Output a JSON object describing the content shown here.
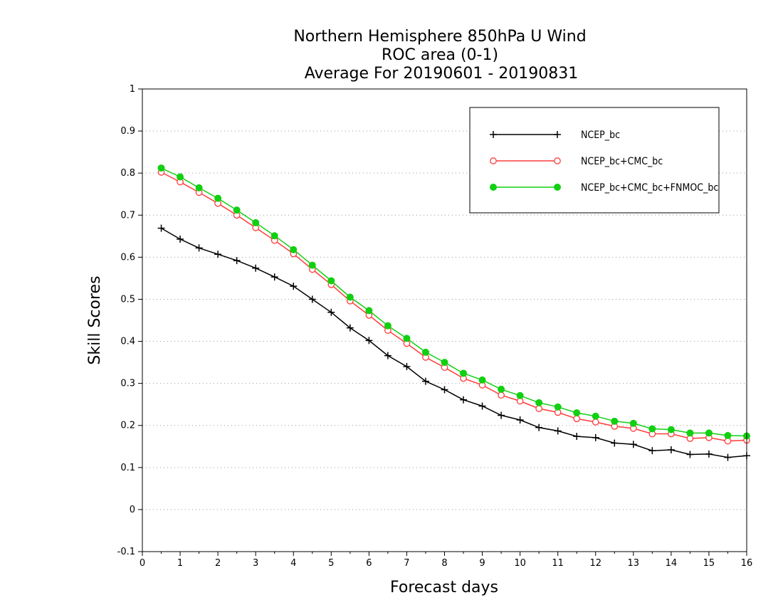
{
  "chart_data": {
    "type": "line",
    "title": [
      "Northern Hemisphere 850hPa U Wind",
      "ROC area (0-1)",
      "Average For 20190601 - 20190831"
    ],
    "xlabel": "Forecast days",
    "ylabel": "Skill Scores",
    "xlim": [
      0,
      16
    ],
    "ylim": [
      -0.1,
      1
    ],
    "xticks": [
      0,
      1,
      2,
      3,
      4,
      5,
      6,
      7,
      8,
      9,
      10,
      11,
      12,
      13,
      14,
      15,
      16
    ],
    "yticks": [
      -0.1,
      0,
      0.1,
      0.2,
      0.3,
      0.4,
      0.5,
      0.6,
      0.7,
      0.8,
      0.9,
      1
    ],
    "ytick_labels": [
      "-0.1",
      "0",
      "0.1",
      "0.2",
      "0.3",
      "0.4",
      "0.5",
      "0.6",
      "0.7",
      "0.8",
      "0.9",
      "1"
    ],
    "grid": "horizontal dotted",
    "legend_position": "top-right",
    "x": [
      0.5,
      1,
      1.5,
      2,
      2.5,
      3,
      3.5,
      4,
      4.5,
      5,
      5.5,
      6,
      6.5,
      7,
      7.5,
      8,
      8.5,
      9,
      9.5,
      10,
      10.5,
      11,
      11.5,
      12,
      12.5,
      13,
      13.5,
      14,
      14.5,
      15,
      15.5,
      16
    ],
    "series": [
      {
        "name": "NCEP_bc",
        "color": "#000000",
        "marker": "plus",
        "values": [
          0.669,
          0.643,
          0.622,
          0.607,
          0.592,
          0.574,
          0.553,
          0.531,
          0.5,
          0.469,
          0.432,
          0.402,
          0.366,
          0.34,
          0.305,
          0.285,
          0.261,
          0.246,
          0.224,
          0.213,
          0.195,
          0.187,
          0.174,
          0.171,
          0.158,
          0.155,
          0.14,
          0.142,
          0.131,
          0.132,
          0.124,
          0.128
        ]
      },
      {
        "name": "NCEP_bc+CMC_bc",
        "color": "#ff3b3b",
        "marker": "open-circle",
        "values": [
          0.802,
          0.779,
          0.754,
          0.728,
          0.7,
          0.67,
          0.64,
          0.608,
          0.571,
          0.535,
          0.496,
          0.462,
          0.426,
          0.395,
          0.362,
          0.338,
          0.312,
          0.296,
          0.272,
          0.258,
          0.24,
          0.231,
          0.216,
          0.208,
          0.198,
          0.193,
          0.18,
          0.18,
          0.169,
          0.171,
          0.163,
          0.165
        ]
      },
      {
        "name": "NCEP_bc+CMC_bc+FNMOC_bc",
        "color": "#11d011",
        "marker": "filled-circle",
        "values": [
          0.812,
          0.791,
          0.765,
          0.74,
          0.712,
          0.682,
          0.651,
          0.618,
          0.581,
          0.544,
          0.505,
          0.473,
          0.437,
          0.407,
          0.374,
          0.35,
          0.324,
          0.308,
          0.286,
          0.271,
          0.254,
          0.244,
          0.23,
          0.222,
          0.21,
          0.205,
          0.192,
          0.19,
          0.182,
          0.182,
          0.176,
          0.175
        ]
      }
    ]
  }
}
